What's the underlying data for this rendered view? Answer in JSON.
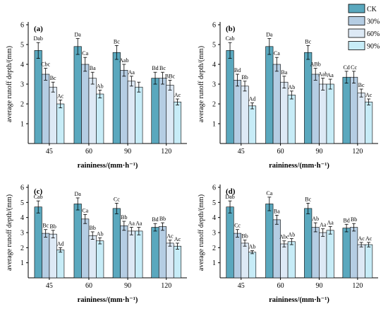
{
  "legend": [
    "CK",
    "30%",
    "60%",
    "90%"
  ],
  "colors": [
    "#5aa8be",
    "#b5cde3",
    "#dde9f5",
    "#c7ecf7"
  ],
  "chart_data": [
    {
      "type": "bar",
      "panel_label": "(a)",
      "categories": [
        "45",
        "60",
        "90",
        "120"
      ],
      "xlabel": "raininess/(mm·h⁻¹)",
      "ylabel": "average runoff depth/(mm)",
      "ylim": [
        0,
        6
      ],
      "yticks": [
        1,
        2,
        3,
        4,
        5,
        6
      ],
      "series": [
        {
          "name": "CK",
          "values": [
            4.7,
            4.9,
            4.6,
            3.3
          ],
          "errors": [
            0.4,
            0.4,
            0.35,
            0.3
          ],
          "labels": [
            "Dab",
            "Da",
            "Bc",
            "Bd"
          ]
        },
        {
          "name": "30%",
          "values": [
            3.5,
            4.0,
            3.7,
            3.3
          ],
          "errors": [
            0.3,
            0.35,
            0.3,
            0.3
          ],
          "labels": [
            "Cbc",
            "Ca",
            "Aab",
            "Bc"
          ]
        },
        {
          "name": "60%",
          "values": [
            2.85,
            3.3,
            3.15,
            2.95
          ],
          "errors": [
            0.25,
            0.3,
            0.25,
            0.25
          ],
          "labels": [
            "Bc",
            "Ba",
            "Aa",
            "BBc"
          ]
        },
        {
          "name": "90%",
          "values": [
            2.0,
            2.5,
            2.85,
            2.1
          ],
          "errors": [
            0.2,
            0.2,
            0.25,
            0.15
          ],
          "labels": [
            "Ac",
            "Ab",
            "",
            "Ac"
          ]
        }
      ]
    },
    {
      "type": "bar",
      "panel_label": "(b)",
      "categories": [
        "45",
        "60",
        "90",
        "120"
      ],
      "xlabel": "raininess/(mm·h⁻¹)",
      "ylabel": "average runoff depth/(mm)",
      "ylim": [
        0,
        6
      ],
      "yticks": [
        1,
        2,
        3,
        4,
        5,
        6
      ],
      "series": [
        {
          "name": "CK",
          "values": [
            4.7,
            4.9,
            4.6,
            3.35
          ],
          "errors": [
            0.4,
            0.4,
            0.35,
            0.3
          ],
          "labels": [
            "Cab",
            "Da",
            "Bc",
            "Cd"
          ]
        },
        {
          "name": "30%",
          "values": [
            3.2,
            4.0,
            3.5,
            3.35
          ],
          "errors": [
            0.3,
            0.35,
            0.3,
            0.3
          ],
          "labels": [
            "Bd",
            "Ca",
            "ABb",
            "Cc"
          ]
        },
        {
          "name": "60%",
          "values": [
            2.9,
            3.1,
            3.0,
            2.55
          ],
          "errors": [
            0.25,
            0.3,
            0.3,
            0.2
          ],
          "labels": [
            "Bb",
            "Ba",
            "Aab",
            "Bc"
          ]
        },
        {
          "name": "90%",
          "values": [
            1.9,
            2.45,
            3.0,
            2.1
          ],
          "errors": [
            0.15,
            0.2,
            0.25,
            0.15
          ],
          "labels": [
            "Ad",
            "Ab",
            "Aa",
            "Ac"
          ]
        }
      ]
    },
    {
      "type": "bar",
      "panel_label": "(c)",
      "categories": [
        "45",
        "60",
        "90",
        "120"
      ],
      "xlabel": "raininess/(mm·h⁻¹)",
      "ylabel": "average runoff depth/(mm)",
      "ylim": [
        0,
        6
      ],
      "yticks": [
        1,
        2,
        3,
        4,
        5,
        6
      ],
      "series": [
        {
          "name": "CK",
          "values": [
            4.7,
            4.9,
            4.6,
            3.35
          ],
          "errors": [
            0.4,
            0.4,
            0.35,
            0.25
          ],
          "labels": [
            "Cab",
            "Da",
            "Cc",
            "Bd"
          ]
        },
        {
          "name": "30%",
          "values": [
            2.95,
            3.9,
            3.45,
            3.4
          ],
          "errors": [
            0.25,
            0.3,
            0.3,
            0.25
          ],
          "labels": [
            "Bc",
            "Ca",
            "Bb",
            "Bb"
          ]
        },
        {
          "name": "60%",
          "values": [
            2.9,
            2.8,
            3.1,
            2.3
          ],
          "errors": [
            0.25,
            0.25,
            0.25,
            0.2
          ],
          "labels": [
            "Bb",
            "Bb",
            "Aa",
            "Ac"
          ]
        },
        {
          "name": "90%",
          "values": [
            1.85,
            2.45,
            3.1,
            2.1
          ],
          "errors": [
            0.15,
            0.2,
            0.25,
            0.2
          ],
          "labels": [
            "Ad",
            "Ab",
            "Aa",
            "Ac"
          ]
        }
      ]
    },
    {
      "type": "bar",
      "panel_label": "(d)",
      "categories": [
        "45",
        "60",
        "90",
        "120"
      ],
      "xlabel": "raininess/(mm·h⁻¹)",
      "ylabel": "average runoff depth/(mm)",
      "ylim": [
        0,
        6
      ],
      "yticks": [
        1,
        2,
        3,
        4,
        5,
        6
      ],
      "series": [
        {
          "name": "CK",
          "values": [
            4.7,
            4.9,
            4.6,
            3.3
          ],
          "errors": [
            0.4,
            0.45,
            0.35,
            0.25
          ],
          "labels": [
            "Dab",
            "Ca",
            "Bc",
            "Bd"
          ]
        },
        {
          "name": "30%",
          "values": [
            2.95,
            3.85,
            3.35,
            3.35
          ],
          "errors": [
            0.25,
            0.3,
            0.3,
            0.25
          ],
          "labels": [
            "Cc",
            "Ba",
            "Ab",
            "Bb"
          ]
        },
        {
          "name": "60%",
          "values": [
            2.3,
            2.25,
            3.0,
            2.2
          ],
          "errors": [
            0.2,
            0.2,
            0.25,
            0.15
          ],
          "labels": [
            "Bb",
            "Abc",
            "Aa",
            "Ac"
          ]
        },
        {
          "name": "90%",
          "values": [
            1.7,
            2.4,
            3.15,
            2.2
          ],
          "errors": [
            0.1,
            0.2,
            0.25,
            0.15
          ],
          "labels": [
            "Ab",
            "Ab",
            "Aa",
            "Ac"
          ]
        }
      ]
    }
  ]
}
